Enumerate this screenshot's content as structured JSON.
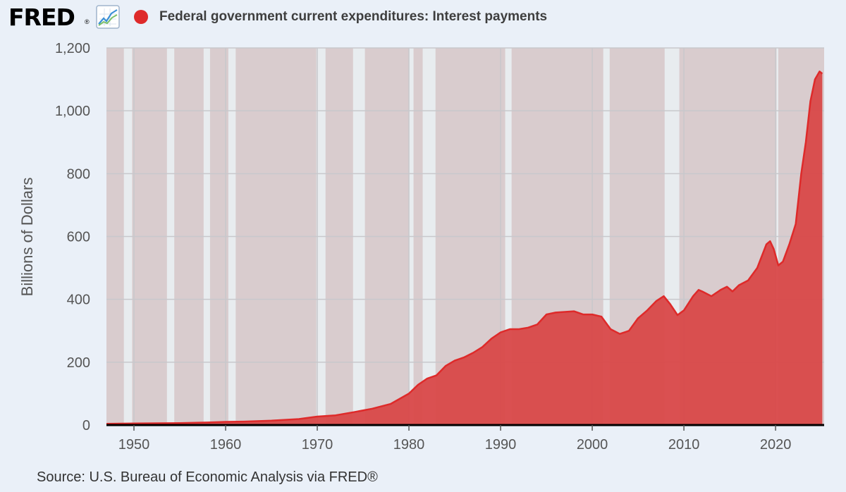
{
  "brand": {
    "name": "FRED",
    "registered": "®",
    "icon": "line-chart-icon"
  },
  "chart_data": {
    "type": "area",
    "title": "Federal government current expenditures: Interest payments",
    "ylabel": "Billions of Dollars",
    "xlabel": "",
    "xlim": [
      1947,
      2025.3
    ],
    "ylim": [
      0,
      1200
    ],
    "y_ticks": [
      0,
      200,
      400,
      600,
      800,
      1000,
      1200
    ],
    "y_tick_labels": [
      "0",
      "200",
      "400",
      "600",
      "800",
      "1,000",
      "1,200"
    ],
    "x_ticks": [
      1950,
      1960,
      1970,
      1980,
      1990,
      2000,
      2010,
      2020
    ],
    "x_tick_labels": [
      "1950",
      "1960",
      "1970",
      "1980",
      "1990",
      "2000",
      "2010",
      "2020"
    ],
    "grid": true,
    "series": [
      {
        "name": "Federal government current expenditures: Interest payments",
        "color": "#de2a2a",
        "fill": "#d94848",
        "x": [
          1947,
          1950,
          1955,
          1958,
          1960,
          1962,
          1965,
          1968,
          1970,
          1972,
          1974,
          1976,
          1978,
          1980,
          1981,
          1982,
          1983,
          1984,
          1985,
          1986,
          1987,
          1988,
          1989,
          1990,
          1991,
          1992,
          1993,
          1994,
          1995,
          1996,
          1997,
          1998,
          1999,
          2000,
          2001,
          2002,
          2003,
          2004,
          2005,
          2006,
          2007,
          2007.8,
          2008.5,
          2009.3,
          2010,
          2011,
          2011.6,
          2012,
          2013,
          2014,
          2014.7,
          2015.3,
          2016,
          2017,
          2018,
          2019,
          2019.4,
          2019.8,
          2020.3,
          2020.8,
          2021.5,
          2022.2,
          2022.8,
          2023.3,
          2023.8,
          2024.3,
          2024.8,
          2025.1
        ],
        "y": [
          4,
          5,
          6,
          8,
          10,
          11,
          14,
          19,
          27,
          31,
          41,
          52,
          67,
          100,
          128,
          148,
          158,
          188,
          205,
          215,
          230,
          248,
          275,
          295,
          305,
          305,
          310,
          320,
          352,
          358,
          360,
          362,
          352,
          352,
          345,
          305,
          290,
          300,
          340,
          365,
          395,
          410,
          385,
          350,
          365,
          410,
          430,
          425,
          410,
          430,
          440,
          425,
          445,
          460,
          500,
          575,
          585,
          560,
          508,
          520,
          575,
          640,
          800,
          900,
          1030,
          1100,
          1125,
          1118
        ]
      }
    ],
    "recessions": [
      [
        1948.9,
        1949.8
      ],
      [
        1953.6,
        1954.4
      ],
      [
        1957.6,
        1958.3
      ],
      [
        1960.3,
        1961.1
      ],
      [
        1969.9,
        1970.9
      ],
      [
        1973.9,
        1975.2
      ],
      [
        1980.0,
        1980.5
      ],
      [
        1981.5,
        1982.9
      ],
      [
        1990.5,
        1991.2
      ],
      [
        2001.2,
        2001.9
      ],
      [
        2007.9,
        2009.5
      ],
      [
        2020.1,
        2020.3
      ]
    ]
  },
  "source": "Source: U.S. Bureau of Economic Analysis via FRED®"
}
